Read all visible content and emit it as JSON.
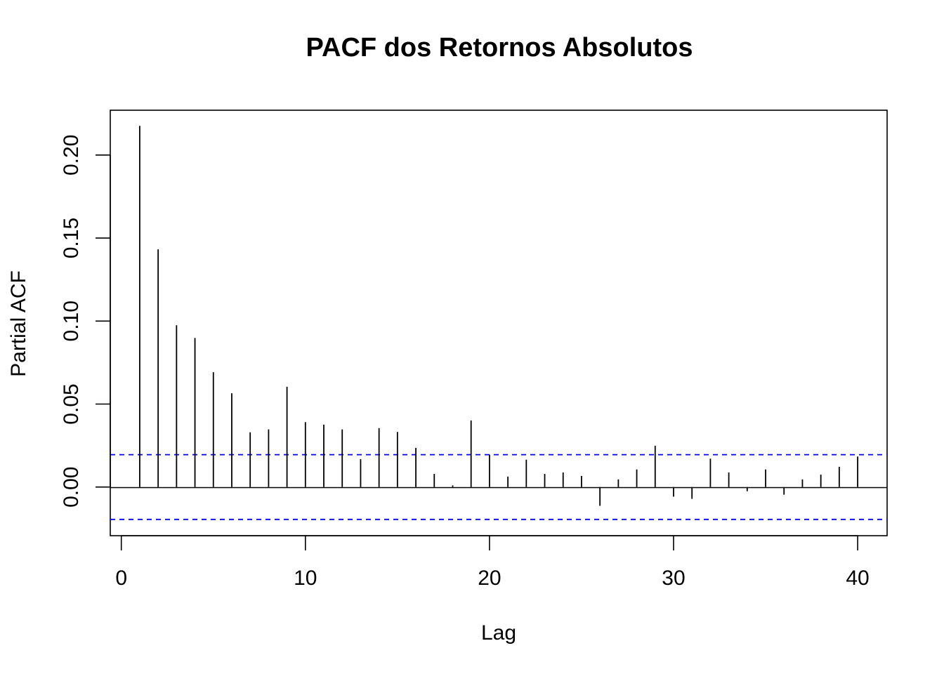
{
  "chart_data": {
    "type": "bar",
    "title": "PACF dos Retornos Absolutos",
    "xlabel": "Lag",
    "ylabel": "Partial ACF",
    "xlim": [
      -0.6,
      41.6
    ],
    "ylim": [
      -0.0293,
      0.227
    ],
    "x_ticks": [
      0,
      10,
      20,
      30,
      40
    ],
    "x_tick_labels": [
      "0",
      "10",
      "20",
      "30",
      "40"
    ],
    "y_ticks": [
      0.0,
      0.05,
      0.1,
      0.15,
      0.2
    ],
    "y_tick_labels": [
      "0.00",
      "0.05",
      "0.10",
      "0.15",
      "0.20"
    ],
    "confidence_bound": 0.0195,
    "confidence_color": "#0000ff",
    "bar_color": "#000000",
    "lags": [
      1,
      2,
      3,
      4,
      5,
      6,
      7,
      8,
      9,
      10,
      11,
      12,
      13,
      14,
      15,
      16,
      17,
      18,
      19,
      20,
      21,
      22,
      23,
      24,
      25,
      26,
      27,
      28,
      29,
      30,
      31,
      32,
      33,
      34,
      35,
      36,
      37,
      38,
      39,
      40
    ],
    "values": [
      0.2176,
      0.1432,
      0.0975,
      0.0898,
      0.0692,
      0.0565,
      0.033,
      0.0347,
      0.0604,
      0.0391,
      0.0376,
      0.0347,
      0.0168,
      0.0355,
      0.0332,
      0.0236,
      0.0079,
      0.001,
      0.0401,
      0.0195,
      0.0063,
      0.0165,
      0.0079,
      0.0088,
      0.0067,
      -0.0113,
      0.0046,
      0.0106,
      0.0249,
      -0.0058,
      -0.0071,
      0.0171,
      0.0088,
      -0.0025,
      0.0106,
      -0.0046,
      0.0046,
      0.0075,
      0.0122,
      0.0184
    ]
  }
}
